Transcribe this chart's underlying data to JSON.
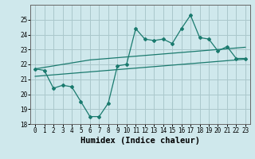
{
  "xlabel": "Humidex (Indice chaleur)",
  "background_color": "#cfe8ec",
  "grid_color": "#aac8cc",
  "line_color": "#1a7a6e",
  "x_values": [
    0,
    1,
    2,
    3,
    4,
    5,
    6,
    7,
    8,
    9,
    10,
    11,
    12,
    13,
    14,
    15,
    16,
    17,
    18,
    19,
    20,
    21,
    22,
    23
  ],
  "line1_values": [
    21.7,
    21.6,
    20.4,
    20.6,
    20.5,
    19.5,
    18.5,
    18.5,
    19.4,
    21.9,
    22.0,
    24.4,
    23.7,
    23.6,
    23.7,
    23.4,
    24.4,
    25.3,
    23.8,
    23.7,
    22.9,
    23.2,
    22.4,
    22.4
  ],
  "line2_values": [
    21.7,
    21.8,
    21.9,
    22.0,
    22.1,
    22.2,
    22.3,
    22.35,
    22.4,
    22.45,
    22.5,
    22.55,
    22.6,
    22.65,
    22.7,
    22.75,
    22.8,
    22.85,
    22.9,
    22.95,
    23.0,
    23.05,
    23.1,
    23.15
  ],
  "line3_values": [
    21.2,
    21.25,
    21.3,
    21.35,
    21.4,
    21.45,
    21.5,
    21.55,
    21.6,
    21.65,
    21.7,
    21.75,
    21.8,
    21.85,
    21.9,
    21.95,
    22.0,
    22.05,
    22.1,
    22.15,
    22.2,
    22.25,
    22.3,
    22.35
  ],
  "ylim": [
    18,
    26
  ],
  "xlim": [
    -0.5,
    23.5
  ],
  "yticks": [
    18,
    19,
    20,
    21,
    22,
    23,
    24,
    25
  ],
  "xticks": [
    0,
    1,
    2,
    3,
    4,
    5,
    6,
    7,
    8,
    9,
    10,
    11,
    12,
    13,
    14,
    15,
    16,
    17,
    18,
    19,
    20,
    21,
    22,
    23
  ],
  "tick_fontsize": 5.5,
  "xlabel_fontsize": 7.5
}
